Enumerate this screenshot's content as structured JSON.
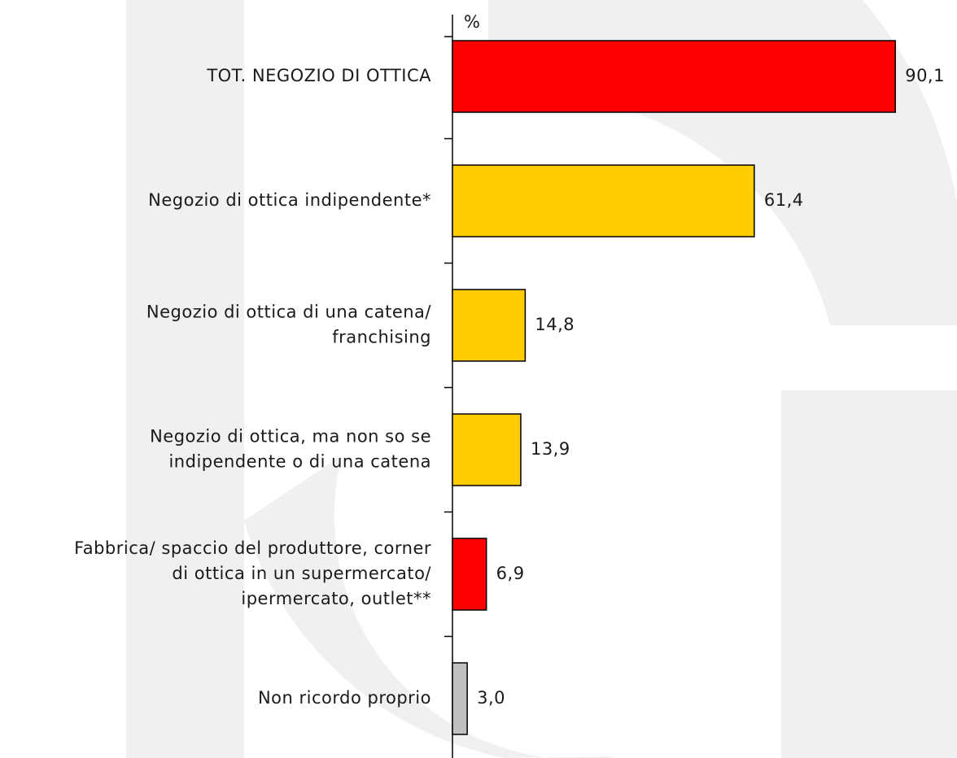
{
  "chart_data": {
    "type": "bar",
    "orientation": "horizontal",
    "axis_label": "%",
    "categories": [
      [
        "TOT. NEGOZIO DI OTTICA"
      ],
      [
        "Negozio di ottica indipendente*"
      ],
      [
        "Negozio di ottica di una catena/",
        "franchising"
      ],
      [
        "Negozio di ottica, ma non so se",
        "indipendente o di una catena"
      ],
      [
        "Fabbrica/ spaccio del produttore, corner",
        "di ottica in un supermercato/",
        "ipermercato, outlet**"
      ],
      [
        "Non ricordo proprio"
      ]
    ],
    "values": [
      90.1,
      61.4,
      14.8,
      13.9,
      6.9,
      3.0
    ],
    "value_labels": [
      "90,1",
      "61,4",
      "14,8",
      "13,9",
      "6,9",
      "3,0"
    ],
    "colors": [
      "#ff0000",
      "#ffcc00",
      "#ffcc00",
      "#ffcc00",
      "#ff0000",
      "#c0c0c0"
    ],
    "xlim": [
      0,
      100
    ]
  }
}
